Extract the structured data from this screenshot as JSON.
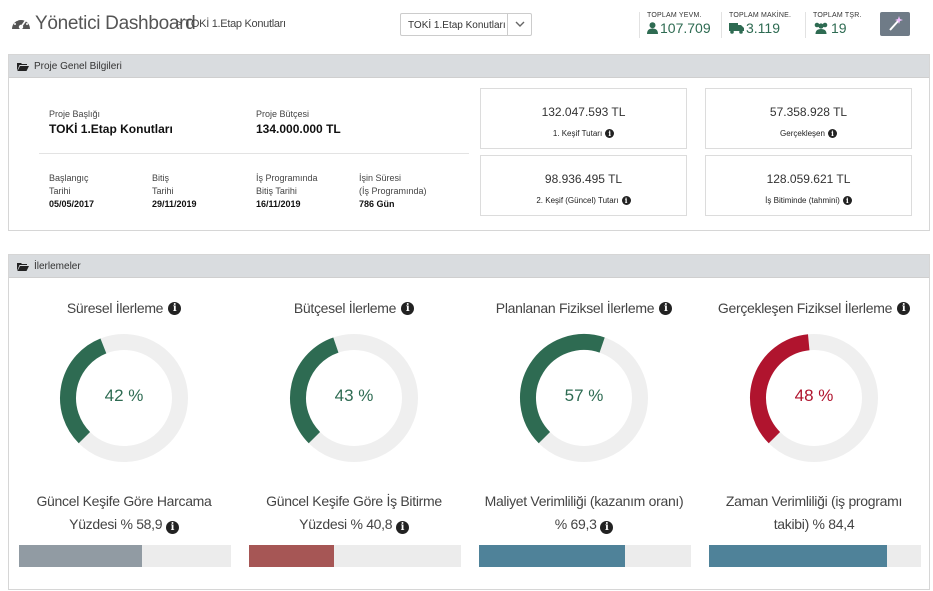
{
  "header": {
    "title": "Yönetici Dashboard",
    "breadcrumb": "> TOKİ 1.Etap Konutları",
    "project_select": "TOKİ 1.Etap Konutları",
    "stats": [
      {
        "label": "TOPLAM YEVM.",
        "value": "107.709",
        "icon": "user-icon"
      },
      {
        "label": "TOPLAM MAKİNE.",
        "value": "3.119",
        "icon": "truck-icon"
      },
      {
        "label": "TOPLAM TŞR.",
        "value": "19",
        "icon": "users-icon"
      }
    ]
  },
  "general": {
    "panel_title": "Proje Genel Bilgileri",
    "project_title_label": "Proje Başlığı",
    "project_title": "TOKİ 1.Etap Konutları",
    "budget_label": "Proje Bütçesi",
    "budget": "134.000.000 TL",
    "start_label_1": "Başlangıç",
    "start_label_2": "Tarihi",
    "start": "05/05/2017",
    "end_label_1": "Bitiş",
    "end_label_2": "Tarihi",
    "end": "29/11/2019",
    "prog_end_label_1": "İş Programında",
    "prog_end_label_2": "Bitiş Tarihi",
    "prog_end": "16/11/2019",
    "duration_label_1": "İşin Süresi",
    "duration_label_2": "(İş Programında)",
    "duration": "786 Gün",
    "kpis": [
      {
        "value": "132.047.593 TL",
        "label": "1. Keşif Tutarı"
      },
      {
        "value": "57.358.928 TL",
        "label": "Gerçekleşen"
      },
      {
        "value": "98.936.495 TL",
        "label": "2. Keşif (Güncel) Tutarı"
      },
      {
        "value": "128.059.621 TL",
        "label": "İş Bitiminde (tahmini)"
      }
    ]
  },
  "progress": {
    "panel_title": "İlerlemeler",
    "gauges": [
      {
        "title": "Süresel İlerleme",
        "value": 42,
        "text": "42 %",
        "color": "#2e6b52",
        "sub_line1": "Güncel Keşife Göre Harcama",
        "sub_line2": "Yüzdesi % 58,9",
        "bar_fraction": 0.58,
        "bar_color": "#919ba3"
      },
      {
        "title": "Bütçesel İlerleme",
        "value": 43,
        "text": "43 %",
        "color": "#2e6b52",
        "sub_line1": "Güncel Keşife Göre İş Bitirme",
        "sub_line2": "Yüzdesi % 40,8",
        "bar_fraction": 0.4,
        "bar_color": "#a65655"
      },
      {
        "title": "Planlanan Fiziksel İlerleme",
        "value": 57,
        "text": "57 %",
        "color": "#2e6b52",
        "sub_line1": "Maliyet Verimliliği (kazanım oranı)",
        "sub_line2": "% 69,3",
        "bar_fraction": 0.69,
        "bar_color": "#4f8299"
      },
      {
        "title": "Gerçekleşen Fiziksel İlerleme",
        "value": 48,
        "text": "48 %",
        "color": "#b0142e",
        "sub_line1": "Zaman Verimliliği (iş programı",
        "sub_line2": "takibi) % 84,4",
        "bar_fraction": 0.84,
        "bar_color": "#4f8299"
      }
    ]
  }
}
